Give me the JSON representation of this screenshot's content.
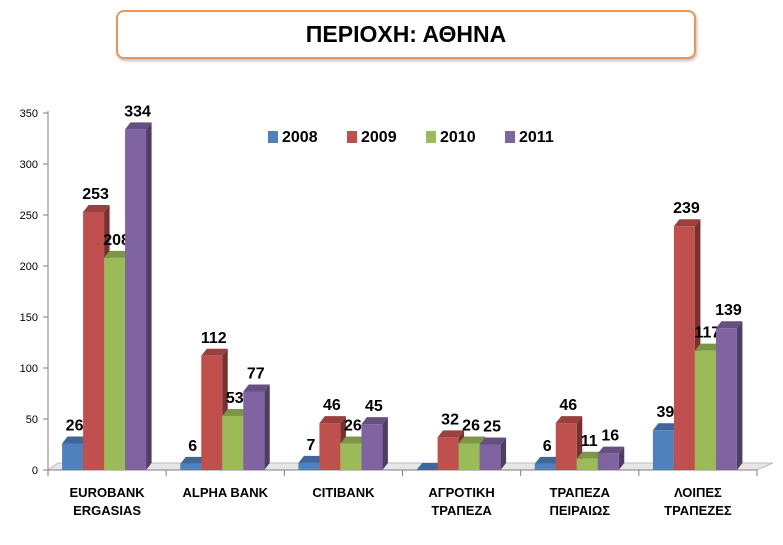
{
  "title": "ΠΕΡΙΟΧΗ: ΑΘΗΝΑ",
  "chart_data": {
    "type": "bar",
    "title": "ΠΕΡΙΟΧΗ: ΑΘΗΝΑ",
    "categories": [
      [
        "EUROBANK",
        "ERGASIAS"
      ],
      [
        "ALPHA BANK"
      ],
      [
        "CITIBANK"
      ],
      [
        "ΑΓΡΟΤΙΚΗ",
        "ΤΡΑΠΕΖΑ"
      ],
      [
        "ΤΡΑΠΕΖΑ",
        "ΠΕΙΡΑΙΩΣ"
      ],
      [
        "ΛΟΙΠΕΣ",
        "ΤΡΑΠΕΖΕΣ"
      ]
    ],
    "series": [
      {
        "name": "2008",
        "color": "#4f81bd",
        "values": [
          26,
          6,
          7,
          0,
          6,
          39
        ],
        "labels": [
          "26",
          "6",
          "7",
          "",
          "6",
          "39"
        ]
      },
      {
        "name": "2009",
        "color": "#c0504d",
        "values": [
          253,
          112,
          46,
          32,
          46,
          239
        ],
        "labels": [
          "253",
          "112",
          "46",
          "32",
          "46",
          "239"
        ]
      },
      {
        "name": "2010",
        "color": "#9bbb59",
        "values": [
          208,
          53,
          26,
          26,
          11,
          117
        ],
        "labels": [
          "208",
          "53",
          "26",
          "26",
          "11",
          "117"
        ]
      },
      {
        "name": "2011",
        "color": "#8064a2",
        "values": [
          334,
          77,
          45,
          25,
          16,
          139
        ],
        "labels": [
          "334",
          "77",
          "45",
          "25",
          "16",
          "139"
        ]
      }
    ],
    "ylim": [
      0,
      350
    ],
    "yticks": [
      0,
      50,
      100,
      150,
      200,
      250,
      300,
      350
    ],
    "legend": "top-center",
    "grid": false,
    "style": "3d-clustered-column"
  }
}
